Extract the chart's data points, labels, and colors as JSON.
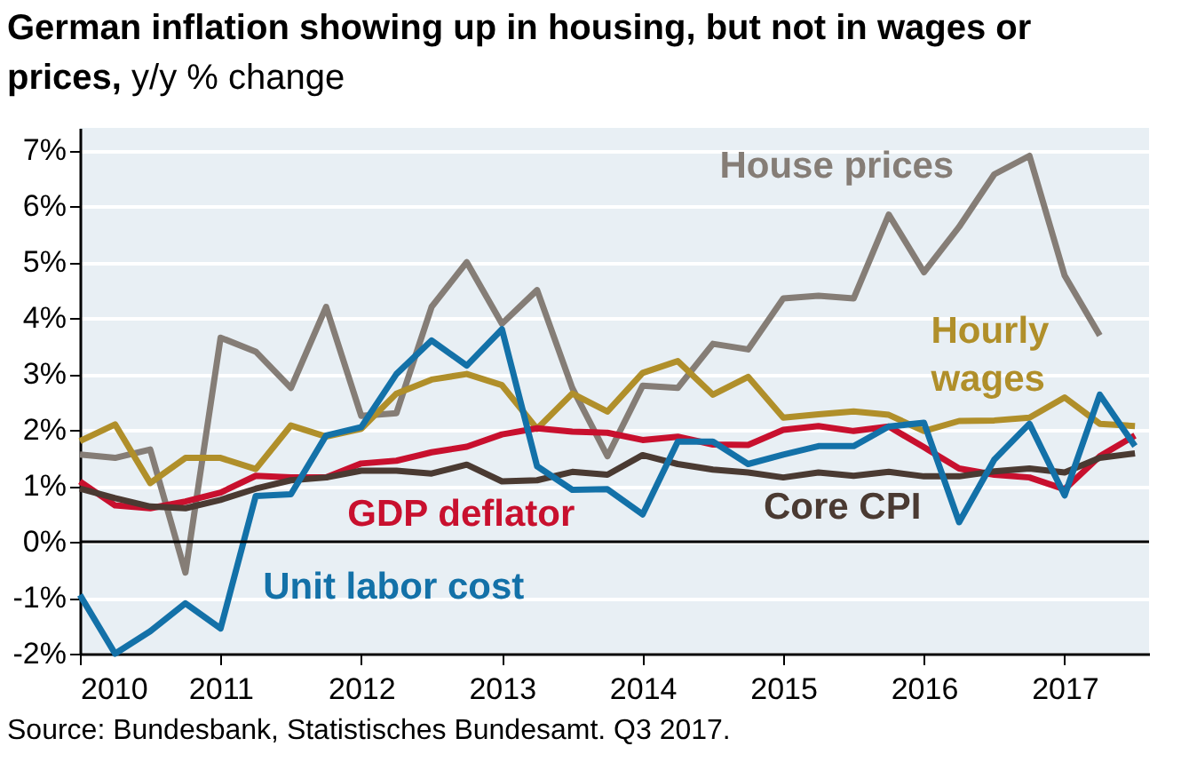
{
  "chart_data": {
    "type": "line",
    "title": "German inflation showing up in housing, but not in wages or prices,",
    "subtitle": "y/y % change",
    "x": [
      2010,
      2010.25,
      2010.5,
      2010.75,
      2011,
      2011.25,
      2011.5,
      2011.75,
      2012,
      2012.25,
      2012.5,
      2012.75,
      2013,
      2013.25,
      2013.5,
      2013.75,
      2014,
      2014.25,
      2014.5,
      2014.75,
      2015,
      2015.25,
      2015.5,
      2015.75,
      2016,
      2016.25,
      2016.5,
      2016.75,
      2017,
      2017.25,
      2017.5
    ],
    "series": [
      {
        "name": "House prices",
        "color": "#857d76",
        "values": [
          1.56,
          1.5,
          1.65,
          -0.55,
          3.65,
          3.4,
          2.75,
          4.2,
          2.25,
          2.3,
          4.2,
          5.0,
          3.9,
          4.5,
          2.75,
          1.53,
          2.79,
          2.75,
          3.54,
          3.44,
          4.35,
          4.4,
          4.35,
          5.85,
          4.82,
          5.63,
          6.57,
          6.9,
          4.76,
          3.69,
          null
        ]
      },
      {
        "name": "Hourly wages",
        "color": "#b08f2a",
        "values": [
          1.8,
          2.1,
          1.05,
          1.5,
          1.5,
          1.3,
          2.08,
          1.88,
          2.02,
          2.65,
          2.9,
          3.0,
          2.8,
          2.02,
          2.65,
          2.33,
          3.02,
          3.23,
          2.63,
          2.95,
          2.22,
          2.28,
          2.33,
          2.27,
          1.98,
          2.16,
          2.17,
          2.22,
          2.58,
          2.11,
          2.07
        ]
      },
      {
        "name": "GDP deflator",
        "color": "#c8102e",
        "values": [
          1.08,
          0.65,
          0.6,
          0.72,
          0.88,
          1.18,
          1.15,
          1.15,
          1.4,
          1.45,
          1.6,
          1.7,
          1.92,
          2.03,
          1.97,
          1.95,
          1.82,
          1.88,
          1.74,
          1.73,
          2.0,
          2.07,
          1.98,
          2.06,
          1.69,
          1.31,
          1.2,
          1.15,
          0.94,
          1.53,
          1.9
        ]
      },
      {
        "name": "Core CPI",
        "color": "#4a3a32",
        "values": [
          0.95,
          0.78,
          0.63,
          0.6,
          0.75,
          0.95,
          1.1,
          1.15,
          1.27,
          1.27,
          1.22,
          1.38,
          1.08,
          1.1,
          1.25,
          1.2,
          1.55,
          1.39,
          1.29,
          1.24,
          1.15,
          1.24,
          1.18,
          1.25,
          1.17,
          1.17,
          1.26,
          1.31,
          1.24,
          1.5,
          1.58
        ]
      },
      {
        "name": "Unit labor cost",
        "color": "#1371a8",
        "values": [
          -0.95,
          -2.0,
          -1.6,
          -1.1,
          -1.55,
          0.82,
          0.85,
          1.9,
          2.05,
          3.0,
          3.6,
          3.15,
          3.8,
          1.35,
          0.93,
          0.94,
          0.49,
          1.79,
          1.79,
          1.39,
          1.56,
          1.71,
          1.71,
          2.06,
          2.13,
          0.35,
          1.47,
          2.11,
          0.83,
          2.63,
          1.71
        ]
      }
    ],
    "xlim": [
      2010,
      2017.6
    ],
    "xticks": [
      2010,
      2011,
      2012,
      2013,
      2014,
      2015,
      2016,
      2017
    ],
    "ylim": [
      -2,
      7.4
    ],
    "yticks": [
      {
        "value": -2,
        "label": "-2%"
      },
      {
        "value": -1,
        "label": "-1%"
      },
      {
        "value": 0,
        "label": "0%"
      },
      {
        "value": 1,
        "label": "1%"
      },
      {
        "value": 2,
        "label": "2%"
      },
      {
        "value": 3,
        "label": "3%"
      },
      {
        "value": 4,
        "label": "4%"
      },
      {
        "value": 5,
        "label": "5%"
      },
      {
        "value": 6,
        "label": "6%"
      },
      {
        "value": 7,
        "label": "7%"
      }
    ],
    "grid": "y",
    "line_style": "solid",
    "marker": "none",
    "ref_lines": [
      {
        "axis": "y",
        "value": 0,
        "color": "#000000"
      }
    ],
    "annotations": [
      "Source: Bundesbank, Statistisches Bundesamt. Q3 2017."
    ]
  }
}
